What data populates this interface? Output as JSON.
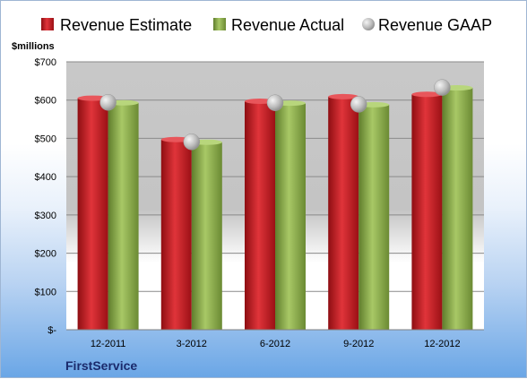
{
  "chart_data": {
    "type": "bar",
    "title": "",
    "ylabel": "$millions",
    "xlabel": "",
    "company": "FirstService",
    "ylim": [
      0,
      700
    ],
    "yticks": [
      0,
      100,
      200,
      300,
      400,
      500,
      600,
      700
    ],
    "ytick_labels": [
      "$-",
      "$100",
      "$200",
      "$300",
      "$400",
      "$500",
      "$600",
      "$700"
    ],
    "categories": [
      "12-2011",
      "3-2012",
      "6-2012",
      "9-2012",
      "12-2012"
    ],
    "series": [
      {
        "name": "Revenue Estimate",
        "type": "bar",
        "color": "#c0161d",
        "values": [
          605,
          497,
          597,
          609,
          615
        ]
      },
      {
        "name": "Revenue Actual",
        "type": "bar",
        "color": "#8fb04a",
        "values": [
          593,
          490,
          592,
          588,
          632
        ]
      },
      {
        "name": "Revenue GAAP",
        "type": "marker",
        "color": "#b8b8b8",
        "values": [
          594,
          491,
          593,
          589,
          633
        ]
      }
    ],
    "legend_position": "top",
    "grid": true
  }
}
